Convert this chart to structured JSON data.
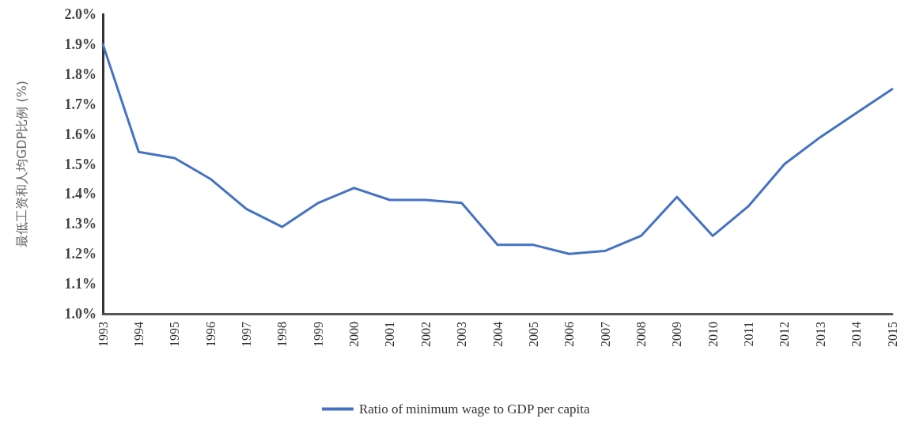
{
  "chart_data": {
    "type": "line",
    "ylabel": "最低工资和人均GDP比例 (%)",
    "categories": [
      "1993",
      "1994",
      "1995",
      "1996",
      "1997",
      "1998",
      "1999",
      "2000",
      "2001",
      "2002",
      "2003",
      "2004",
      "2005",
      "2006",
      "2007",
      "2008",
      "2009",
      "2010",
      "2011",
      "2012",
      "2013",
      "2014",
      "2015"
    ],
    "series": [
      {
        "name": "Ratio of minimum wage to GDP per capita",
        "color": "#4472c4",
        "values": [
          1.9,
          1.54,
          1.52,
          1.45,
          1.35,
          1.29,
          1.37,
          1.42,
          1.38,
          1.38,
          1.37,
          1.23,
          1.23,
          1.2,
          1.21,
          1.26,
          1.39,
          1.26,
          1.36,
          1.5,
          1.59,
          1.67,
          1.75
        ]
      }
    ],
    "ylim": [
      1.0,
      2.0
    ],
    "yticks": [
      {
        "value": 1.0,
        "label": "1.0%"
      },
      {
        "value": 1.1,
        "label": "1.1%"
      },
      {
        "value": 1.2,
        "label": "1.2%"
      },
      {
        "value": 1.3,
        "label": "1.3%"
      },
      {
        "value": 1.4,
        "label": "1.4%"
      },
      {
        "value": 1.5,
        "label": "1.5%"
      },
      {
        "value": 1.6,
        "label": "1.6%"
      },
      {
        "value": 1.7,
        "label": "1.7%"
      },
      {
        "value": 1.8,
        "label": "1.8%"
      },
      {
        "value": 1.9,
        "label": "1.9%"
      },
      {
        "value": 2.0,
        "label": "2.0%"
      }
    ],
    "grid": false,
    "legend": "bottom",
    "marker": "none",
    "line_style": "solid"
  }
}
